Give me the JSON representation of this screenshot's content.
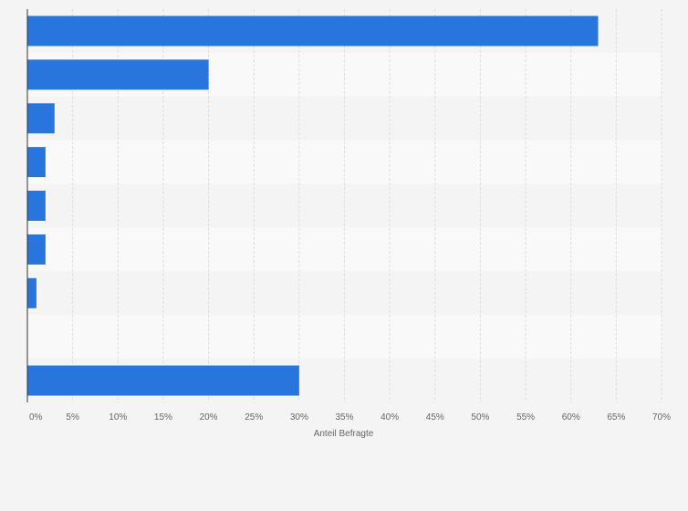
{
  "chart_data": {
    "type": "bar",
    "orientation": "horizontal",
    "categories": [
      "",
      "",
      "",
      "",
      "",
      "",
      "",
      "",
      ""
    ],
    "values": [
      63,
      20,
      3,
      2,
      2,
      2,
      1,
      0,
      30
    ],
    "xlabel": "Anteil Befragte",
    "ylabel": "",
    "xlim": [
      0,
      70
    ],
    "xticks": [
      0,
      5,
      10,
      15,
      20,
      25,
      30,
      35,
      40,
      45,
      50,
      55,
      60,
      65,
      70
    ],
    "tick_labels": [
      "0%",
      "5%",
      "10%",
      "15%",
      "20%",
      "25%",
      "30%",
      "35%",
      "40%",
      "45%",
      "50%",
      "55%",
      "60%",
      "65%",
      "70%"
    ],
    "grid": true,
    "legend": "none",
    "bar_color": "#2876dd",
    "band_colors": [
      "#f4f4f4",
      "#f9f9f9"
    ],
    "gridline_color": "#dddddd",
    "axis_color": "#333333"
  }
}
